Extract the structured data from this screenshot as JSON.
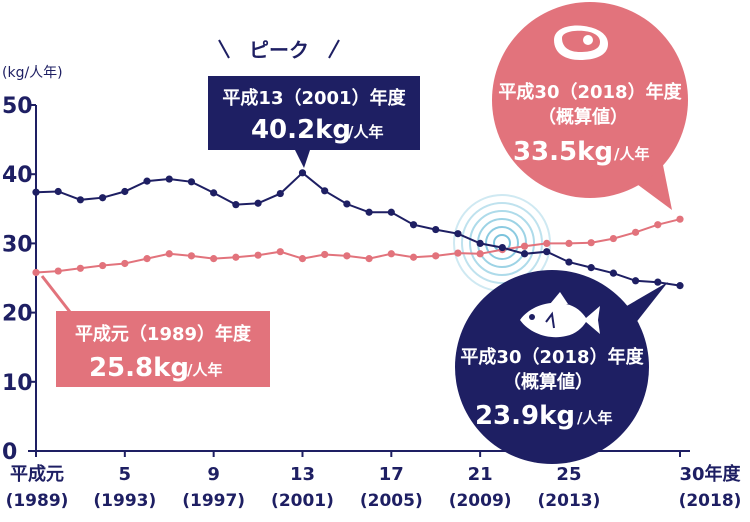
{
  "chart_data": {
    "type": "line",
    "y_unit": "(kg/人年)",
    "ylim": [
      0,
      50
    ],
    "yticks": [
      0,
      10,
      20,
      30,
      40,
      50
    ],
    "grid": false,
    "x_start_year": 1989,
    "x_end_year": 2018,
    "xticks": [
      {
        "year": 1989,
        "line1": "平成元",
        "line2": "(1989)"
      },
      {
        "year": 1993,
        "line1": "5",
        "line2": "(1993)"
      },
      {
        "year": 1997,
        "line1": "9",
        "line2": "(1997)"
      },
      {
        "year": 2001,
        "line1": "13",
        "line2": "(2001)"
      },
      {
        "year": 2005,
        "line1": "17",
        "line2": "(2005)"
      },
      {
        "year": 2009,
        "line1": "21",
        "line2": "(2009)"
      },
      {
        "year": 2013,
        "line1": "25",
        "line2": "(2013)"
      },
      {
        "year": 2018,
        "line1": "30年度",
        "line2": "(2018)"
      }
    ],
    "series": [
      {
        "id": "fish",
        "color": "#1e1f63",
        "icon": "fish-icon",
        "x": [
          1989,
          1990,
          1991,
          1992,
          1993,
          1994,
          1995,
          1996,
          1997,
          1998,
          1999,
          2000,
          2001,
          2002,
          2003,
          2004,
          2005,
          2006,
          2007,
          2008,
          2009,
          2010,
          2011,
          2012,
          2013,
          2014,
          2015,
          2016,
          2017,
          2018
        ],
        "values": [
          37.4,
          37.5,
          36.3,
          36.6,
          37.5,
          39.0,
          39.3,
          38.9,
          37.3,
          35.6,
          35.8,
          37.2,
          40.2,
          37.6,
          35.7,
          34.5,
          34.5,
          32.7,
          32.0,
          31.4,
          30.0,
          29.4,
          28.5,
          28.8,
          27.3,
          26.5,
          25.7,
          24.6,
          24.4,
          23.9
        ]
      },
      {
        "id": "meat",
        "color": "#e2737c",
        "icon": "meat-icon",
        "x": [
          1989,
          1990,
          1991,
          1992,
          1993,
          1994,
          1995,
          1996,
          1997,
          1998,
          1999,
          2000,
          2001,
          2002,
          2003,
          2004,
          2005,
          2006,
          2007,
          2008,
          2009,
          2010,
          2011,
          2012,
          2013,
          2014,
          2015,
          2016,
          2017,
          2018
        ],
        "values": [
          25.8,
          26.0,
          26.4,
          26.8,
          27.1,
          27.8,
          28.5,
          28.2,
          27.8,
          28.0,
          28.3,
          28.8,
          27.8,
          28.4,
          28.2,
          27.8,
          28.5,
          28.0,
          28.2,
          28.6,
          28.5,
          29.1,
          29.6,
          30.0,
          30.0,
          30.1,
          30.7,
          31.6,
          32.7,
          33.5
        ]
      }
    ],
    "annotations": {
      "peak": {
        "header": "ピーク",
        "line1": "平成13（2001）年度",
        "value": "40.2kg",
        "unit": "/人年"
      },
      "meat_2018": {
        "line1": "平成30（2018）年度",
        "line2": "（概算値）",
        "value": "33.5kg",
        "unit": "/人年"
      },
      "fish_2018": {
        "line1": "平成30（2018）年度",
        "line2": "（概算値）",
        "value": "23.9kg",
        "unit": "/人年"
      },
      "meat_1989": {
        "line1": "平成元（1989）年度",
        "value": "25.8kg",
        "unit": "/人年"
      }
    }
  }
}
